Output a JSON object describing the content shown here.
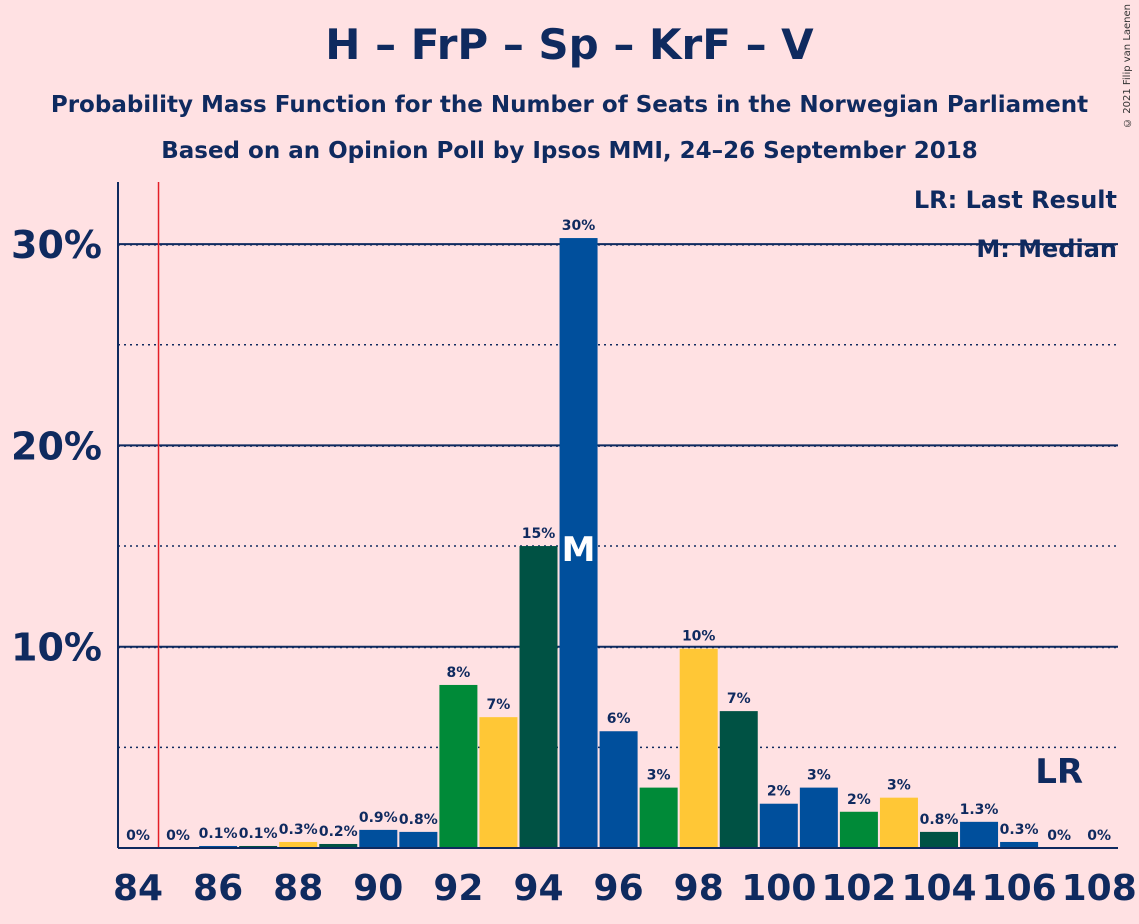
{
  "title": "H – FrP – Sp – KrF – V",
  "subtitle1": "Probability Mass Function for the Number of Seats in the Norwegian Parliament",
  "subtitle2": "Based on an Opinion Poll by Ipsos MMI, 24–26 September 2018",
  "copyright": "© 2021 Filip van Laenen",
  "legend": {
    "lr": "LR: Last Result",
    "median": "M: Median"
  },
  "median_marker": "M",
  "last_result_marker": "LR",
  "colors": {
    "navy": "#0F2A5F",
    "blue": "#004F9C",
    "green": "#008A38",
    "yellow": "#FFC736",
    "teal": "#005244",
    "red": "#E41E26",
    "background": "#FFE1E3"
  },
  "chart_data": {
    "type": "bar",
    "x": [
      84,
      85,
      86,
      87,
      88,
      89,
      90,
      91,
      92,
      93,
      94,
      95,
      96,
      97,
      98,
      99,
      100,
      101,
      102,
      103,
      104,
      105,
      106,
      107,
      108
    ],
    "values": [
      0,
      0,
      0.1,
      0.1,
      0.3,
      0.2,
      0.9,
      0.8,
      8.1,
      6.5,
      15,
      30.3,
      5.8,
      3,
      9.9,
      6.8,
      2.2,
      3,
      1.8,
      2.5,
      0.8,
      1.3,
      0.3,
      0,
      0
    ],
    "labels": [
      "0%",
      "0%",
      "0.1%",
      "0.1%",
      "0.3%",
      "0.2%",
      "0.9%",
      "0.8%",
      "8%",
      "7%",
      "15%",
      "30%",
      "6%",
      "3%",
      "10%",
      "7%",
      "2%",
      "3%",
      "2%",
      "3%",
      "0.8%",
      "1.3%",
      "0.3%",
      "0%",
      "0%"
    ],
    "bar_colors": [
      "#004F9C",
      "#004F9C",
      "#004F9C",
      "#005244",
      "#FFC736",
      "#005244",
      "#004F9C",
      "#004F9C",
      "#008A38",
      "#FFC736",
      "#005244",
      "#004F9C",
      "#004F9C",
      "#008A38",
      "#FFC736",
      "#005244",
      "#004F9C",
      "#004F9C",
      "#008A38",
      "#FFC736",
      "#005244",
      "#004F9C",
      "#004F9C",
      "#004F9C",
      "#004F9C"
    ],
    "xticks": [
      "84",
      "86",
      "88",
      "90",
      "92",
      "94",
      "96",
      "98",
      "100",
      "102",
      "104",
      "106",
      "108"
    ],
    "yticks": [
      "10%",
      "20%",
      "30%"
    ],
    "ylim": [
      0,
      33
    ],
    "median": 95,
    "last_result": 107,
    "majority_line": 84.5
  }
}
